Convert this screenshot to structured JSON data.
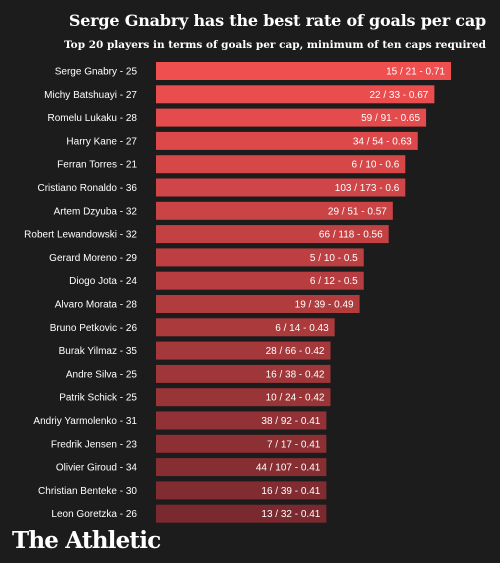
{
  "title": "Serge Gnabry has the best rate of goals per cap",
  "subtitle": "Top 20 players in terms of goals per cap, minimum of ten caps required",
  "brand": "The Athletic",
  "colors": {
    "background": "#1c1c1c",
    "bar_top": "#ef4f4f",
    "bar_bottom": "#7a2a2f",
    "text": "#ffffff"
  },
  "chart_data": {
    "type": "bar",
    "orientation": "horizontal",
    "categories": [
      "Serge Gnabry - 25",
      "Michy Batshuayi - 27",
      "Romelu Lukaku - 28",
      "Harry Kane - 27",
      "Ferran Torres - 21",
      "Cristiano Ronaldo - 36",
      "Artem Dzyuba - 32",
      "Robert Lewandowski - 32",
      "Gerard Moreno - 29",
      "Diogo Jota - 24",
      "Alvaro Morata - 28",
      "Bruno Petkovic - 26",
      "Burak Yilmaz - 35",
      "Andre Silva - 25",
      "Patrik Schick - 25",
      "Andriy Yarmolenko - 31",
      "Fredrik Jensen - 23",
      "Olivier Giroud - 34",
      "Christian Benteke - 30",
      "Leon Goretzka - 26"
    ],
    "values": [
      0.71,
      0.67,
      0.65,
      0.63,
      0.6,
      0.6,
      0.57,
      0.56,
      0.5,
      0.5,
      0.49,
      0.43,
      0.42,
      0.42,
      0.42,
      0.41,
      0.41,
      0.41,
      0.41,
      0.41
    ],
    "labels": [
      "15 / 21 - 0.71",
      "22 / 33 - 0.67",
      "59 / 91 - 0.65",
      "34 / 54 - 0.63",
      "6 / 10 - 0.6",
      "103 / 173 - 0.6",
      "29 / 51 - 0.57",
      "66 / 118 - 0.56",
      "5 / 10 - 0.5",
      "6 / 12 - 0.5",
      "19 / 39 - 0.49",
      "6 / 14 - 0.43",
      "28 / 66 - 0.42",
      "16 / 38 - 0.42",
      "10 / 24 - 0.42",
      "38 / 92 - 0.41",
      "7 / 17 - 0.41",
      "44 / 107 - 0.41",
      "16 / 39 - 0.41",
      "13 / 32 - 0.41"
    ],
    "xlim": [
      0,
      0.71
    ],
    "grid": false,
    "legend": "none"
  }
}
